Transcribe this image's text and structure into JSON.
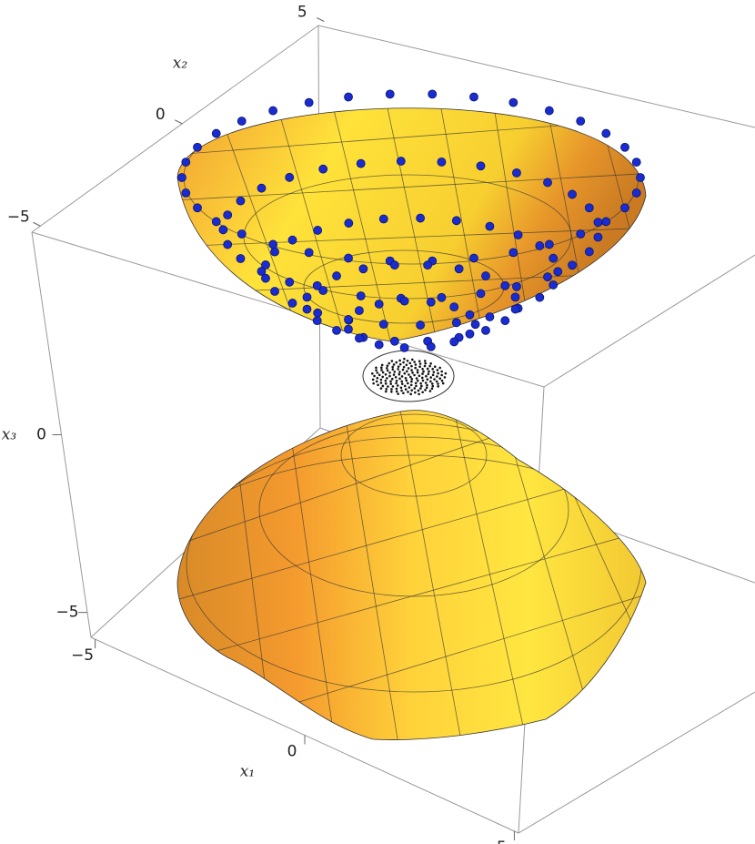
{
  "chart_data": {
    "type": "surface3d",
    "xlabel": "x₁",
    "ylabel": "x₂",
    "zlabel": "x₃",
    "xlim": [
      -5.1,
      5.1
    ],
    "xticks": [
      {
        "value": -5,
        "label": "−5"
      },
      0,
      5
    ],
    "ylim": [
      -5.3,
      4.8
    ],
    "yticks": [
      {
        "value": -5,
        "label": "−5"
      },
      0,
      5
    ],
    "zlim": [
      -5.7,
      5.7
    ],
    "zticks": [
      {
        "value": -5,
        "label": "−5"
      },
      0
    ]
  }
}
